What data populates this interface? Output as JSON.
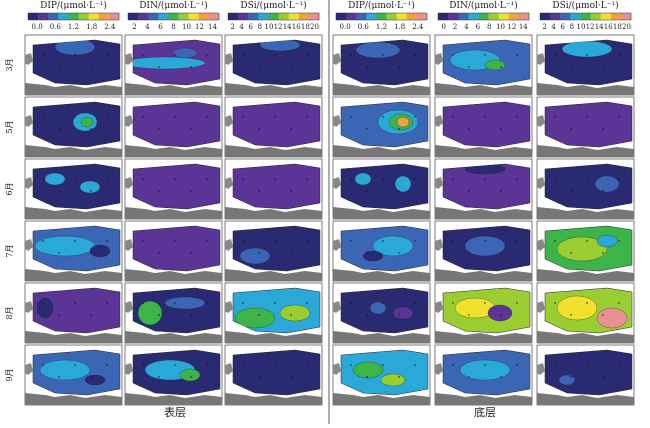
{
  "colorbars": [
    {
      "title": "DIP/(μmol·L⁻¹)",
      "ticks": [
        "0.0",
        "0.6",
        "1.2",
        "1.8",
        "2.4"
      ]
    },
    {
      "title": "DIN/(μmol·L⁻¹)",
      "ticks": [
        "2",
        "4",
        "6",
        "8",
        "10",
        "12",
        "14"
      ]
    },
    {
      "title": "DSi/(μmol·L⁻¹)",
      "ticks": [
        "2",
        "4",
        "6",
        "8",
        "10",
        "12",
        "14",
        "16",
        "18",
        "20"
      ]
    },
    {
      "title": "DIP/(μmol·L⁻¹)",
      "ticks": [
        "0.0",
        "0.6",
        "1.2",
        "1.8",
        "2.4"
      ]
    },
    {
      "title": "DIN/(μmol·L⁻¹)",
      "ticks": [
        "0",
        "2",
        "4",
        "6",
        "8",
        "10",
        "12",
        "14"
      ]
    },
    {
      "title": "DSi/(μmol·L⁻¹)",
      "ticks": [
        "2",
        "4",
        "6",
        "8",
        "10",
        "12",
        "14",
        "16",
        "18",
        "20"
      ]
    }
  ],
  "rows": [
    "3月",
    "5月",
    "6月",
    "7月",
    "8月",
    "9月"
  ],
  "groups": [
    "表层",
    "底层"
  ]
}
